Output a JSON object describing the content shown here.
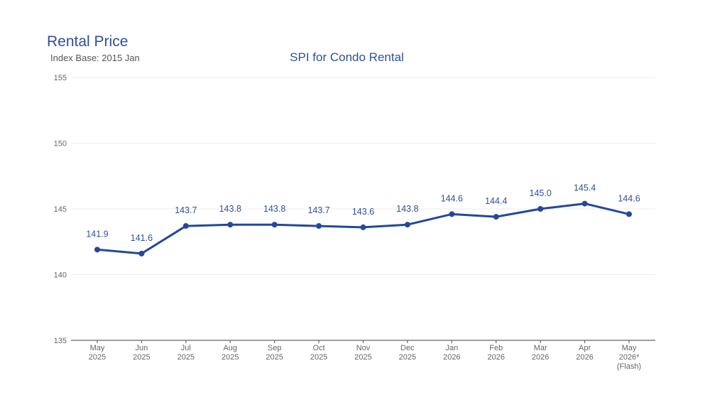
{
  "header": {
    "title": "Rental Price",
    "subtitle": "Index Base: 2015 Jan"
  },
  "colors": {
    "accent": "#2e4f9c",
    "line": "#24489a",
    "axis_text": "#666666"
  },
  "chart_data": {
    "type": "line",
    "title": "SPI for Condo Rental",
    "xlabel": "",
    "ylabel": "",
    "categories": [
      [
        "May",
        "2025"
      ],
      [
        "Jun",
        "2025"
      ],
      [
        "Jul",
        "2025"
      ],
      [
        "Aug",
        "2025"
      ],
      [
        "Sep",
        "2025"
      ],
      [
        "Oct",
        "2025"
      ],
      [
        "Nov",
        "2025"
      ],
      [
        "Dec",
        "2025"
      ],
      [
        "Jan",
        "2026"
      ],
      [
        "Feb",
        "2026"
      ],
      [
        "Mar",
        "2026"
      ],
      [
        "Apr",
        "2026"
      ],
      [
        "May",
        "2026*",
        "(Flash)"
      ]
    ],
    "values": [
      141.9,
      141.6,
      143.7,
      143.8,
      143.8,
      143.7,
      143.6,
      143.8,
      144.6,
      144.4,
      145.0,
      145.4,
      144.6
    ],
    "data_labels": [
      "141.9",
      "141.6",
      "143.7",
      "143.8",
      "143.8",
      "143.7",
      "143.6",
      "143.8",
      "144.6",
      "144.4",
      "145.0",
      "145.4",
      "144.6"
    ],
    "ylim": [
      135,
      155
    ],
    "yticks": [
      135,
      140,
      145,
      150,
      155
    ],
    "grid": true,
    "legend": "none"
  }
}
